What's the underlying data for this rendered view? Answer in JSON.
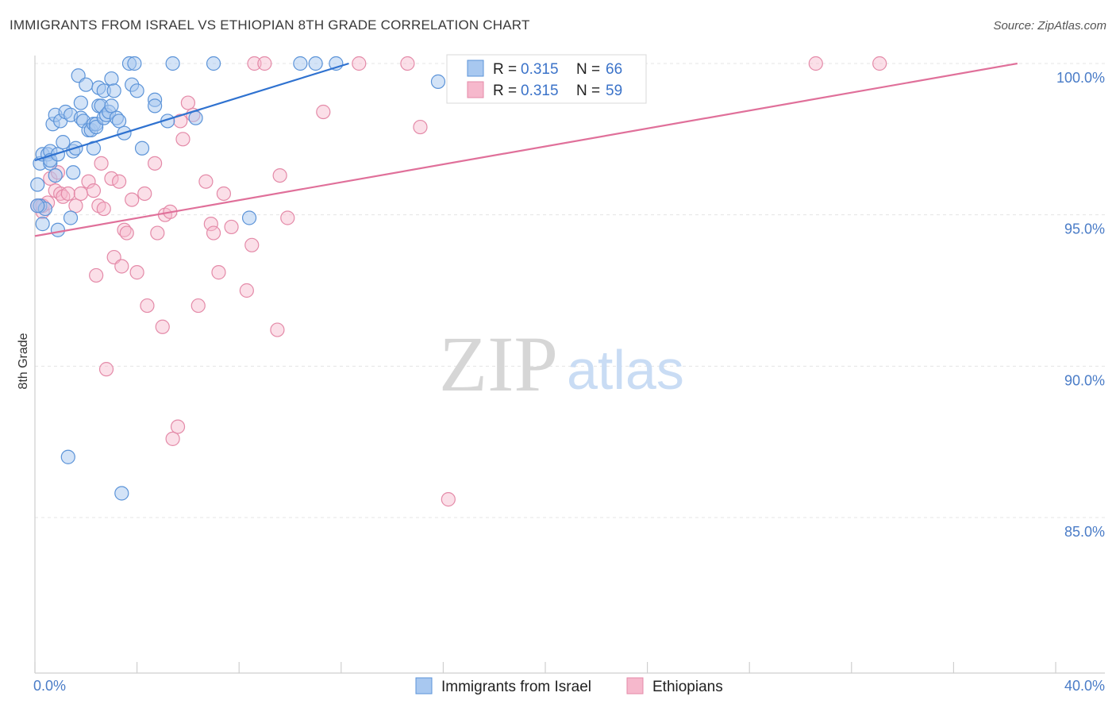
{
  "header": {
    "title": "IMMIGRANTS FROM ISRAEL VS ETHIOPIAN 8TH GRADE CORRELATION CHART",
    "source": "Source: ZipAtlas.com"
  },
  "watermark": {
    "zip": "ZIP",
    "atlas": "atlas"
  },
  "colors": {
    "israel_fill": "#a8c8f0",
    "israel_stroke": "#5b93d8",
    "israel_line": "#2f72d0",
    "eth_fill": "#f6b8cc",
    "eth_stroke": "#e48aa8",
    "eth_line": "#e0709a",
    "tick_text": "#4a7cc7",
    "grid": "#e4e4e4"
  },
  "chart_data": {
    "type": "scatter",
    "xlabel": "",
    "ylabel": "8th Grade",
    "xlim": [
      0,
      40
    ],
    "ylim": [
      80,
      100.5
    ],
    "x_tick_labels": [
      {
        "value": 0,
        "label": "0.0%"
      },
      {
        "value": 40,
        "label": "40.0%"
      }
    ],
    "y_tick_labels": [
      {
        "value": 100,
        "label": "100.0%"
      },
      {
        "value": 95,
        "label": "95.0%"
      },
      {
        "value": 90,
        "label": "90.0%"
      },
      {
        "value": 85,
        "label": "85.0%"
      }
    ],
    "grid": true,
    "legend": {
      "placement": "top-center",
      "entries": [
        {
          "r_label": "R =",
          "r_value": "0.315",
          "n_label": "N =",
          "n_value": "66"
        },
        {
          "r_label": "R =",
          "r_value": "0.315",
          "n_label": "N =",
          "n_value": "59"
        }
      ]
    },
    "series": [
      {
        "name": "Immigrants from Israel",
        "trend": {
          "x": [
            0.0,
            12.3
          ],
          "y": [
            96.8,
            100.0
          ]
        },
        "points": [
          [
            0.2,
            96.7
          ],
          [
            0.2,
            95.3
          ],
          [
            0.3,
            94.7
          ],
          [
            0.3,
            97.0
          ],
          [
            0.4,
            95.2
          ],
          [
            0.5,
            97.0
          ],
          [
            0.6,
            96.7
          ],
          [
            0.6,
            97.1
          ],
          [
            0.6,
            96.8
          ],
          [
            0.7,
            98.0
          ],
          [
            0.8,
            98.3
          ],
          [
            0.8,
            96.3
          ],
          [
            0.9,
            97.0
          ],
          [
            0.9,
            94.5
          ],
          [
            1.0,
            98.1
          ],
          [
            1.1,
            97.4
          ],
          [
            1.2,
            98.4
          ],
          [
            1.3,
            87.0
          ],
          [
            1.4,
            98.3
          ],
          [
            1.4,
            94.9
          ],
          [
            1.5,
            96.4
          ],
          [
            1.5,
            97.1
          ],
          [
            1.6,
            97.2
          ],
          [
            1.7,
            99.6
          ],
          [
            1.8,
            98.7
          ],
          [
            1.8,
            98.2
          ],
          [
            1.9,
            98.1
          ],
          [
            2.0,
            99.3
          ],
          [
            2.1,
            97.8
          ],
          [
            2.2,
            97.8
          ],
          [
            2.3,
            98.0
          ],
          [
            2.3,
            97.2
          ],
          [
            2.4,
            98.0
          ],
          [
            2.4,
            97.9
          ],
          [
            2.5,
            99.2
          ],
          [
            2.5,
            98.6
          ],
          [
            2.6,
            98.6
          ],
          [
            2.7,
            99.1
          ],
          [
            2.7,
            98.2
          ],
          [
            2.8,
            98.3
          ],
          [
            2.9,
            98.4
          ],
          [
            3.0,
            98.6
          ],
          [
            3.0,
            99.5
          ],
          [
            3.1,
            99.1
          ],
          [
            3.2,
            98.2
          ],
          [
            3.3,
            98.1
          ],
          [
            3.4,
            85.8
          ],
          [
            3.5,
            97.7
          ],
          [
            3.7,
            100.0
          ],
          [
            3.8,
            99.3
          ],
          [
            3.9,
            100.0
          ],
          [
            4.0,
            99.1
          ],
          [
            4.2,
            97.2
          ],
          [
            4.7,
            98.8
          ],
          [
            4.7,
            98.6
          ],
          [
            5.2,
            98.1
          ],
          [
            5.4,
            100.0
          ],
          [
            6.3,
            98.2
          ],
          [
            7.0,
            100.0
          ],
          [
            8.4,
            94.9
          ],
          [
            10.4,
            100.0
          ],
          [
            11.0,
            100.0
          ],
          [
            11.8,
            100.0
          ],
          [
            15.8,
            99.4
          ],
          [
            0.1,
            96.0
          ],
          [
            0.1,
            95.3
          ]
        ]
      },
      {
        "name": "Ethiopians",
        "trend": {
          "x": [
            0.0,
            38.5
          ],
          "y": [
            94.3,
            100.0
          ]
        },
        "points": [
          [
            0.1,
            95.3
          ],
          [
            0.2,
            95.3
          ],
          [
            0.3,
            95.1
          ],
          [
            0.3,
            95.3
          ],
          [
            0.5,
            95.4
          ],
          [
            0.6,
            96.2
          ],
          [
            0.8,
            95.8
          ],
          [
            0.9,
            96.4
          ],
          [
            1.0,
            95.7
          ],
          [
            1.1,
            95.6
          ],
          [
            1.3,
            95.7
          ],
          [
            1.6,
            95.3
          ],
          [
            1.8,
            95.7
          ],
          [
            2.1,
            96.1
          ],
          [
            2.3,
            95.8
          ],
          [
            2.4,
            93.0
          ],
          [
            2.5,
            95.3
          ],
          [
            2.6,
            96.7
          ],
          [
            2.7,
            95.2
          ],
          [
            2.8,
            89.9
          ],
          [
            3.0,
            96.2
          ],
          [
            3.1,
            93.6
          ],
          [
            3.3,
            96.1
          ],
          [
            3.4,
            93.3
          ],
          [
            3.5,
            94.5
          ],
          [
            3.6,
            94.4
          ],
          [
            3.8,
            95.5
          ],
          [
            4.0,
            93.1
          ],
          [
            4.3,
            95.7
          ],
          [
            4.4,
            92.0
          ],
          [
            4.7,
            96.7
          ],
          [
            4.8,
            94.4
          ],
          [
            5.0,
            91.3
          ],
          [
            5.1,
            95.0
          ],
          [
            5.3,
            95.1
          ],
          [
            5.4,
            87.6
          ],
          [
            5.6,
            88.0
          ],
          [
            5.7,
            98.1
          ],
          [
            5.8,
            97.5
          ],
          [
            6.0,
            98.7
          ],
          [
            6.2,
            98.3
          ],
          [
            6.4,
            92.0
          ],
          [
            6.7,
            96.1
          ],
          [
            6.9,
            94.7
          ],
          [
            7.0,
            94.4
          ],
          [
            7.2,
            93.1
          ],
          [
            7.4,
            95.7
          ],
          [
            7.7,
            94.6
          ],
          [
            8.3,
            92.5
          ],
          [
            8.5,
            94.0
          ],
          [
            8.6,
            100.0
          ],
          [
            9.0,
            100.0
          ],
          [
            9.5,
            91.2
          ],
          [
            9.6,
            96.3
          ],
          [
            9.9,
            94.9
          ],
          [
            11.3,
            98.4
          ],
          [
            12.7,
            100.0
          ],
          [
            14.6,
            100.0
          ],
          [
            15.1,
            97.9
          ]
        ]
      }
    ],
    "extra_ethiopian_points": [
      [
        16.2,
        85.6
      ],
      [
        20.8,
        100.0
      ],
      [
        30.6,
        100.0
      ],
      [
        33.1,
        100.0
      ]
    ]
  },
  "bottom_legend": {
    "israel": "Immigrants from Israel",
    "ethiopians": "Ethiopians"
  }
}
